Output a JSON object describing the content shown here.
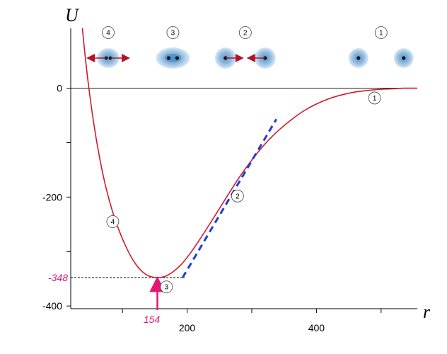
{
  "chart_data": {
    "type": "line",
    "xlabel": "r",
    "ylabel": "U",
    "xlim": [
      20,
      556
    ],
    "ylim": [
      -405,
      110
    ],
    "x_ticks": [
      200,
      400
    ],
    "y_ticks": [
      0,
      -200,
      -400
    ],
    "x_ticks_unlabeled": [
      100,
      300,
      500
    ],
    "y_ticks_unlabeled": [
      -100,
      -300
    ],
    "grid": false,
    "series": [
      {
        "x": [
          38,
          45,
          55,
          65,
          75,
          85,
          95,
          105,
          115,
          125,
          135,
          145,
          154,
          165,
          175,
          190,
          205,
          220,
          240,
          260,
          280,
          300,
          320,
          340,
          360,
          380,
          400,
          420,
          440,
          460,
          480,
          500,
          520,
          535,
          556
        ],
        "y": [
          110,
          30,
          -60,
          -130,
          -185,
          -228,
          -262,
          -290,
          -313,
          -330,
          -341,
          -346.5,
          -348,
          -346,
          -340,
          -325,
          -303,
          -277,
          -240,
          -202,
          -165,
          -132,
          -103,
          -79,
          -59,
          -42,
          -29,
          -19,
          -12,
          -7,
          -4,
          -2,
          -1,
          0,
          0
        ]
      }
    ],
    "tangent_line": {
      "x": [
        193,
        338
      ],
      "y": [
        -348,
        -57
      ]
    },
    "minimum": {
      "r": 154,
      "U": -348,
      "r_label": "154",
      "U_label": "-348"
    },
    "curve_markers": [
      {
        "label": "1",
        "r": 490,
        "U": -18
      },
      {
        "label": "2",
        "r": 278,
        "U": -198
      },
      {
        "label": "3",
        "r": 168,
        "U": -365
      },
      {
        "label": "4",
        "r": 85,
        "U": -245
      }
    ],
    "stages": [
      {
        "label": "1",
        "r": 500
      },
      {
        "label": "2",
        "r": 290
      },
      {
        "label": "3",
        "r": 178
      },
      {
        "label": "4",
        "r": 78
      }
    ]
  }
}
